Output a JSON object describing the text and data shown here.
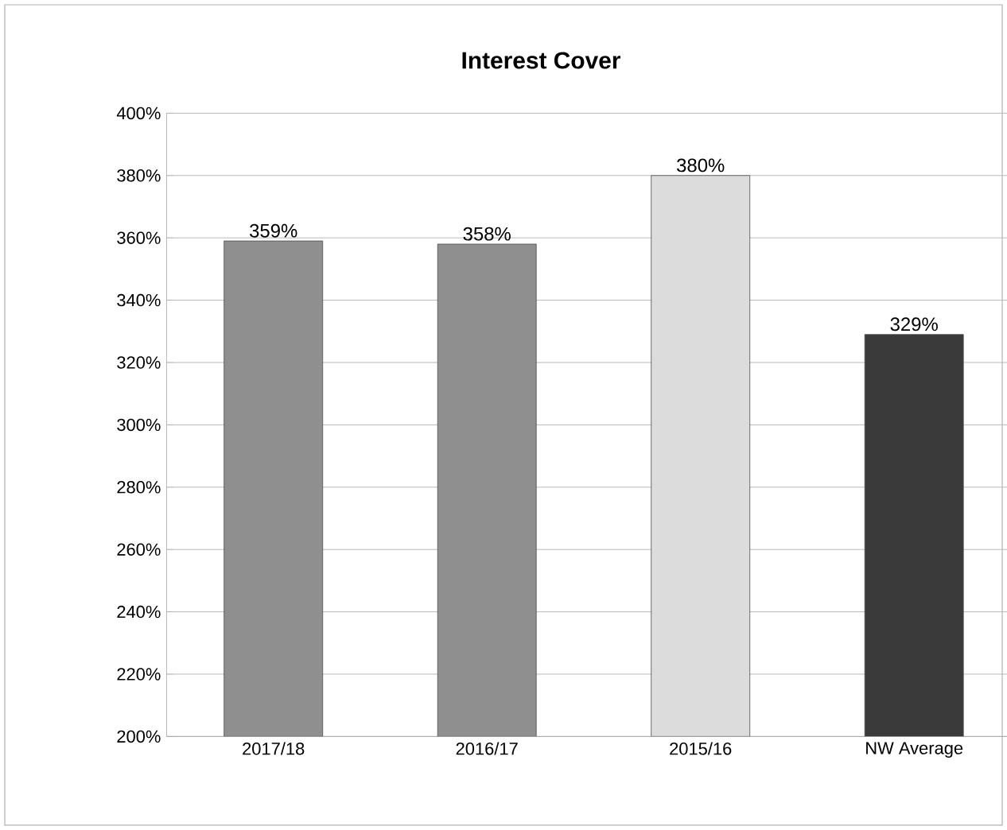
{
  "chart_data": {
    "type": "bar",
    "title": "Interest Cover",
    "categories": [
      "2017/18",
      "2016/17",
      "2015/16",
      "NW Average"
    ],
    "values": [
      359,
      358,
      380,
      329
    ],
    "colors": [
      "#8f8f8f",
      "#8f8f8f",
      "#dcdcdc",
      "#3a3a3a"
    ],
    "value_labels": [
      "359%",
      "358%",
      "380%",
      "329%"
    ],
    "ylim": [
      200,
      400
    ],
    "yticks": [
      {
        "value": 200,
        "label": "200%"
      },
      {
        "value": 220,
        "label": "220%"
      },
      {
        "value": 240,
        "label": "240%"
      },
      {
        "value": 260,
        "label": "260%"
      },
      {
        "value": 280,
        "label": "280%"
      },
      {
        "value": 300,
        "label": "300%"
      },
      {
        "value": 320,
        "label": "320%"
      },
      {
        "value": 340,
        "label": "340%"
      },
      {
        "value": 360,
        "label": "360%"
      },
      {
        "value": 380,
        "label": "380%"
      },
      {
        "value": 400,
        "label": "400%"
      }
    ],
    "grid": "y"
  }
}
